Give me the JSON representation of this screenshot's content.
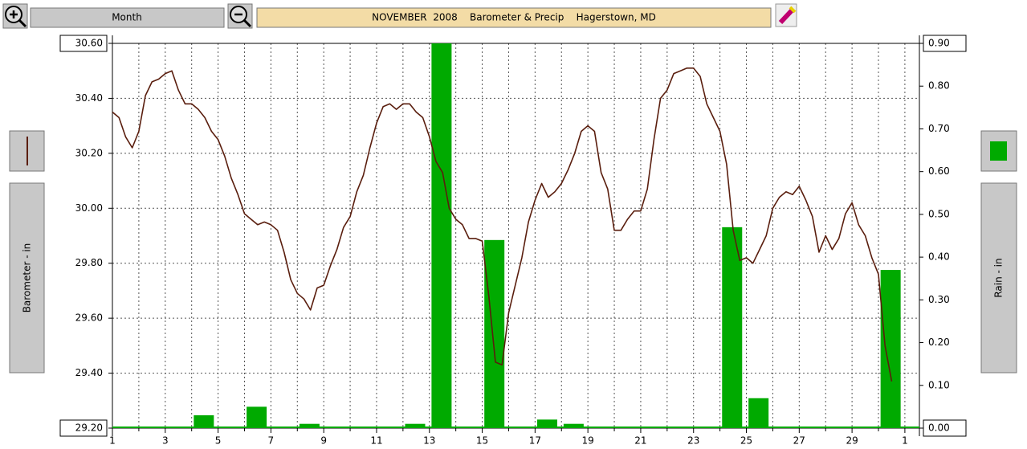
{
  "chart_data": {
    "type": "combo",
    "title": "NOVEMBER  2008    Barometer & Precip    Hagerstown, MD",
    "range_button": "Month",
    "ylabel": "Barometer - in",
    "y2label": "Rain - in",
    "grid": true,
    "xlim": [
      1,
      31.55
    ],
    "xticks": [
      1,
      3,
      5,
      7,
      9,
      11,
      13,
      15,
      17,
      19,
      21,
      23,
      25,
      27,
      29,
      {
        "value": 31,
        "label": "1"
      }
    ],
    "ylim": [
      29.2,
      30.6
    ],
    "yticks": [
      {
        "value": 29.2,
        "label": "29.20"
      },
      {
        "value": 29.4,
        "label": "29.40"
      },
      {
        "value": 29.6,
        "label": "29.60"
      },
      {
        "value": 29.8,
        "label": "29.80"
      },
      {
        "value": 30.0,
        "label": "30.00"
      },
      {
        "value": 30.2,
        "label": "30.20"
      },
      {
        "value": 30.4,
        "label": "30.40"
      },
      {
        "value": 30.6,
        "label": "30.60"
      }
    ],
    "y2lim": [
      0,
      0.9
    ],
    "y2ticks": [
      {
        "value": 0,
        "label": "0.00"
      },
      {
        "value": 0.1,
        "label": "0.10"
      },
      {
        "value": 0.2,
        "label": "0.20"
      },
      {
        "value": 0.3,
        "label": "0.30"
      },
      {
        "value": 0.4,
        "label": "0.40"
      },
      {
        "value": 0.5,
        "label": "0.50"
      },
      {
        "value": 0.6,
        "label": "0.60"
      },
      {
        "value": 0.7,
        "label": "0.70"
      },
      {
        "value": 0.8,
        "label": "0.80"
      },
      {
        "value": 0.9,
        "label": "0.90"
      }
    ],
    "series": [
      {
        "type": "line",
        "color": "#5a1e0e",
        "x": [
          1,
          1.25,
          1.5,
          1.75,
          2,
          2.25,
          2.5,
          2.75,
          3,
          3.25,
          3.5,
          3.75,
          4,
          4.25,
          4.5,
          4.75,
          5,
          5.25,
          5.5,
          5.75,
          6,
          6.25,
          6.5,
          6.75,
          7,
          7.25,
          7.5,
          7.75,
          8,
          8.25,
          8.5,
          8.75,
          9,
          9.25,
          9.5,
          9.75,
          10,
          10.25,
          10.5,
          10.75,
          11,
          11.25,
          11.5,
          11.75,
          12,
          12.25,
          12.5,
          12.75,
          13,
          13.25,
          13.5,
          13.75,
          14,
          14.25,
          14.5,
          14.75,
          15,
          15.25,
          15.5,
          15.75,
          16,
          16.25,
          16.5,
          16.75,
          17,
          17.25,
          17.5,
          17.75,
          18,
          18.25,
          18.5,
          18.75,
          19,
          19.25,
          19.5,
          19.75,
          20,
          20.25,
          20.5,
          20.75,
          21,
          21.25,
          21.5,
          21.75,
          22,
          22.25,
          22.5,
          22.75,
          23,
          23.25,
          23.5,
          23.75,
          24,
          24.25,
          24.5,
          24.75,
          25,
          25.25,
          25.5,
          25.75,
          26,
          26.25,
          26.5,
          26.75,
          27,
          27.25,
          27.5,
          27.75,
          28,
          28.25,
          28.5,
          28.75,
          29,
          29.25,
          29.5,
          29.75,
          30,
          30.25,
          30.5
        ],
        "values": [
          30.35,
          30.33,
          30.26,
          30.22,
          30.28,
          30.41,
          30.46,
          30.47,
          30.49,
          30.5,
          30.43,
          30.38,
          30.38,
          30.36,
          30.33,
          30.28,
          30.25,
          30.19,
          30.11,
          30.05,
          29.98,
          29.96,
          29.94,
          29.95,
          29.94,
          29.92,
          29.84,
          29.74,
          29.69,
          29.67,
          29.63,
          29.71,
          29.72,
          29.79,
          29.85,
          29.93,
          29.97,
          30.06,
          30.12,
          30.22,
          30.31,
          30.37,
          30.38,
          30.36,
          30.38,
          30.38,
          30.35,
          30.33,
          30.26,
          30.17,
          30.13,
          30.0,
          29.96,
          29.94,
          29.89,
          29.89,
          29.88,
          29.68,
          29.44,
          29.43,
          29.62,
          29.72,
          29.82,
          29.95,
          30.03,
          30.09,
          30.04,
          30.06,
          30.09,
          30.14,
          30.2,
          30.28,
          30.3,
          30.28,
          30.13,
          30.07,
          29.92,
          29.92,
          29.96,
          29.99,
          29.99,
          30.07,
          30.25,
          30.4,
          30.43,
          30.49,
          30.5,
          30.51,
          30.51,
          30.48,
          30.38,
          30.33,
          30.28,
          30.16,
          29.92,
          29.81,
          29.82,
          29.8,
          29.85,
          29.9,
          30.0,
          30.04,
          30.06,
          30.05,
          30.08,
          30.03,
          29.97,
          29.84,
          29.9,
          29.85,
          29.89,
          29.98,
          30.02,
          29.94,
          29.9,
          29.82,
          29.76,
          29.5,
          29.37
        ]
      },
      {
        "type": "bar",
        "axis": "y2",
        "color": "#00aa00",
        "x": [
          1,
          2,
          3,
          4,
          5,
          6,
          7,
          8,
          9,
          10,
          11,
          12,
          13,
          14,
          15,
          16,
          17,
          18,
          19,
          20,
          21,
          22,
          23,
          24,
          25,
          26,
          27,
          28,
          29,
          30
        ],
        "values": [
          0,
          0,
          0,
          0.03,
          0,
          0.05,
          0,
          0.01,
          0,
          0,
          0,
          0.01,
          0.9,
          0,
          0.44,
          0,
          0.02,
          0.01,
          0,
          0,
          0,
          0,
          0,
          0.47,
          0.07,
          0,
          0,
          0,
          0,
          0.37
        ]
      }
    ]
  }
}
